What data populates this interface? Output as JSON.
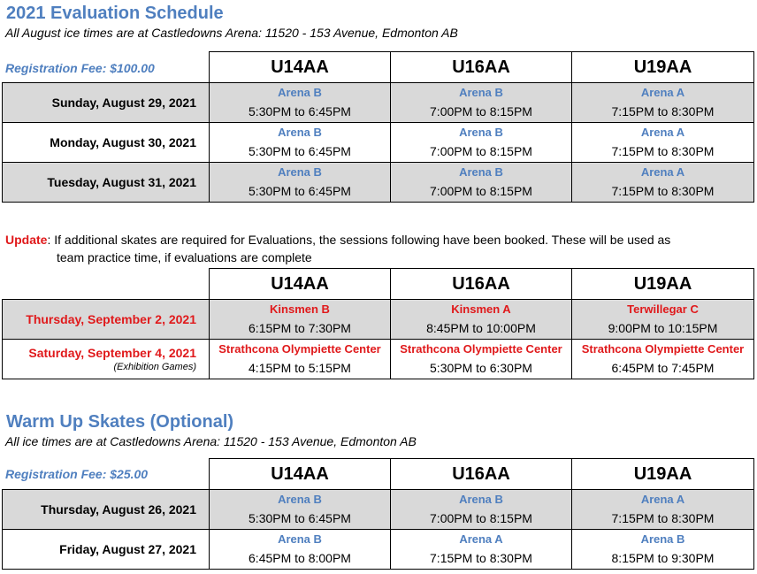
{
  "eval": {
    "title": "2021 Evaluation Schedule",
    "subtitle": "All August ice times are at Castledowns Arena:  11520 - 153 Avenue, Edmonton AB",
    "fee": "Registration Fee:  $100.00",
    "headers": [
      "U14AA",
      "U16AA",
      "U19AA"
    ],
    "rows": [
      {
        "date": "Sunday, August 29, 2021",
        "gray": true,
        "slots": [
          {
            "arena": "Arena B",
            "time": "5:30PM to 6:45PM"
          },
          {
            "arena": "Arena B",
            "time": "7:00PM to 8:15PM"
          },
          {
            "arena": "Arena A",
            "time": "7:15PM to 8:30PM"
          }
        ]
      },
      {
        "date": "Monday, August 30, 2021",
        "gray": false,
        "slots": [
          {
            "arena": "Arena B",
            "time": "5:30PM to 6:45PM"
          },
          {
            "arena": "Arena B",
            "time": "7:00PM to 8:15PM"
          },
          {
            "arena": "Arena A",
            "time": "7:15PM to 8:30PM"
          }
        ]
      },
      {
        "date": "Tuesday, August 31, 2021",
        "gray": true,
        "slots": [
          {
            "arena": "Arena B",
            "time": "5:30PM to 6:45PM"
          },
          {
            "arena": "Arena B",
            "time": "7:00PM to 8:15PM"
          },
          {
            "arena": "Arena A",
            "time": "7:15PM to 8:30PM"
          }
        ]
      }
    ]
  },
  "update": {
    "label": "Update",
    "line1": ": If additional skates are required for Evaluations, the sessions following have been booked.  These will be used as",
    "line2": "team practice time, if evaluations are complete"
  },
  "extra": {
    "headers": [
      "U14AA",
      "U16AA",
      "U19AA"
    ],
    "rows": [
      {
        "date": "Thursday, September 2, 2021",
        "note": "",
        "gray": true,
        "slots": [
          {
            "arena": "Kinsmen B",
            "time": "6:15PM to 7:30PM"
          },
          {
            "arena": "Kinsmen A",
            "time": "8:45PM to 10:00PM"
          },
          {
            "arena": "Terwillegar C",
            "time": "9:00PM to 10:15PM"
          }
        ]
      },
      {
        "date": "Saturday, September 4, 2021",
        "note": "(Exhibition Games)",
        "gray": false,
        "slots": [
          {
            "arena": "Strathcona Olympiette Center",
            "time": "4:15PM to 5:15PM"
          },
          {
            "arena": "Strathcona Olympiette Center",
            "time": "5:30PM to 6:30PM"
          },
          {
            "arena": "Strathcona Olympiette Center",
            "time": "6:45PM to 7:45PM"
          }
        ]
      }
    ]
  },
  "warmup": {
    "title": "Warm Up Skates (Optional)",
    "subtitle": "All ice times are at Castledowns Arena:  11520 - 153 Avenue, Edmonton AB",
    "fee": "Registration Fee:  $25.00",
    "headers": [
      "U14AA",
      "U16AA",
      "U19AA"
    ],
    "rows": [
      {
        "date": "Thursday, August 26, 2021",
        "gray": true,
        "slots": [
          {
            "arena": "Arena B",
            "time": "5:30PM to 6:45PM"
          },
          {
            "arena": "Arena B",
            "time": "7:00PM to 8:15PM"
          },
          {
            "arena": "Arena A",
            "time": "7:15PM to 8:30PM"
          }
        ]
      },
      {
        "date": "Friday, August 27, 2021",
        "gray": false,
        "slots": [
          {
            "arena": "Arena B",
            "time": "6:45PM to 8:00PM"
          },
          {
            "arena": "Arena A",
            "time": "7:15PM to 8:30PM"
          },
          {
            "arena": "Arena B",
            "time": "8:15PM to 9:30PM"
          }
        ]
      }
    ]
  }
}
